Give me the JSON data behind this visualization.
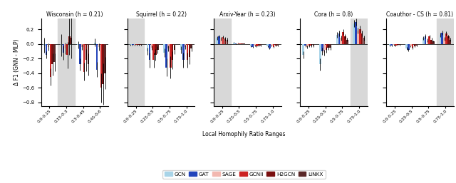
{
  "datasets": {
    "Wisconsin": {
      "title": "Wisconsin (h = 0.21)",
      "x_labels": [
        "0.0-0.15",
        "0.15-0.3",
        "0.3-0.45",
        "0.45-0.6"
      ],
      "highlight_idx": 1,
      "models": {
        "GCN": [
          -0.02,
          -0.02,
          -0.01,
          0.02
        ],
        "GAT": [
          -0.15,
          -0.12,
          -0.28,
          -0.35
        ],
        "SAGE": [
          -0.04,
          -0.06,
          -0.04,
          -0.04
        ],
        "GCNII": [
          -0.45,
          -0.15,
          -0.38,
          -0.6
        ],
        "H2GCN": [
          -0.28,
          0.1,
          -0.22,
          -0.55
        ],
        "LINKX": [
          -0.25,
          0.08,
          -0.28,
          -0.4
        ]
      },
      "errors": {
        "GCN": [
          0.1,
          0.15,
          0.05,
          0.05
        ],
        "GAT": [
          0.05,
          0.1,
          0.08,
          0.1
        ],
        "SAGE": [
          0.05,
          0.08,
          0.04,
          0.05
        ],
        "GCNII": [
          0.12,
          0.18,
          0.12,
          0.2
        ],
        "H2GCN": [
          0.15,
          0.25,
          0.15,
          0.28
        ],
        "LINKX": [
          0.12,
          0.28,
          0.15,
          0.22
        ]
      }
    },
    "Squirrel": {
      "title": "Squirrel (h = 0.22)",
      "x_labels": [
        "0.0-0.25",
        "0.25-0.5",
        "0.5-0.75",
        "0.75-1.0"
      ],
      "highlight_idx": 0,
      "models": {
        "GCN": [
          -0.01,
          -0.1,
          -0.12,
          -0.08
        ],
        "GAT": [
          -0.01,
          -0.22,
          -0.32,
          -0.22
        ],
        "SAGE": [
          -0.01,
          -0.05,
          -0.06,
          -0.04
        ],
        "GCNII": [
          -0.01,
          -0.22,
          -0.32,
          -0.22
        ],
        "H2GCN": [
          -0.01,
          -0.15,
          -0.22,
          -0.18
        ],
        "LINKX": [
          -0.01,
          -0.08,
          -0.08,
          -0.06
        ]
      },
      "errors": {
        "GCN": [
          0.01,
          0.05,
          0.06,
          0.05
        ],
        "GAT": [
          0.01,
          0.1,
          0.12,
          0.1
        ],
        "SAGE": [
          0.01,
          0.03,
          0.04,
          0.03
        ],
        "GCNII": [
          0.01,
          0.1,
          0.15,
          0.1
        ],
        "H2GCN": [
          0.01,
          0.08,
          0.12,
          0.1
        ],
        "LINKX": [
          0.01,
          0.05,
          0.06,
          0.04
        ]
      }
    },
    "Arxiv-Year": {
      "title": "Arxiv-Year (h = 0.23)",
      "x_labels": [
        "0.0-0.25",
        "0.25-0.5",
        "0.5-0.75",
        "0.75-1.0"
      ],
      "highlight_idx": 0,
      "models": {
        "GCN": [
          0.08,
          0.02,
          -0.03,
          -0.03
        ],
        "GAT": [
          0.1,
          0.005,
          -0.04,
          -0.06
        ],
        "SAGE": [
          0.07,
          0.01,
          -0.02,
          -0.02
        ],
        "GCNII": [
          0.09,
          0.005,
          -0.03,
          -0.04
        ],
        "H2GCN": [
          0.07,
          0.005,
          -0.02,
          -0.02
        ],
        "LINKX": [
          0.06,
          0.005,
          -0.02,
          -0.02
        ]
      },
      "errors": {
        "GCN": [
          0.02,
          0.005,
          0.01,
          0.01
        ],
        "GAT": [
          0.02,
          0.005,
          0.01,
          0.01
        ],
        "SAGE": [
          0.02,
          0.003,
          0.01,
          0.01
        ],
        "GCNII": [
          0.02,
          0.003,
          0.01,
          0.01
        ],
        "H2GCN": [
          0.02,
          0.003,
          0.01,
          0.01
        ],
        "LINKX": [
          0.02,
          0.003,
          0.01,
          0.01
        ]
      }
    },
    "Cora": {
      "title": "Cora (h = 0.8)",
      "x_labels": [
        "0.0-0.25",
        "0.25-0.5",
        "0.5-0.75",
        "0.75-1.0"
      ],
      "highlight_idx": 3,
      "models": {
        "GCN": [
          -0.15,
          -0.28,
          0.12,
          0.28
        ],
        "GAT": [
          -0.02,
          -0.1,
          0.14,
          0.3
        ],
        "SAGE": [
          -0.04,
          -0.12,
          0.08,
          0.18
        ],
        "GCNII": [
          -0.02,
          -0.08,
          0.16,
          0.2
        ],
        "H2GCN": [
          -0.02,
          -0.05,
          0.1,
          0.14
        ],
        "LINKX": [
          -0.02,
          -0.05,
          0.06,
          0.08
        ]
      },
      "errors": {
        "GCN": [
          0.05,
          0.08,
          0.04,
          0.05
        ],
        "GAT": [
          0.02,
          0.05,
          0.04,
          0.05
        ],
        "SAGE": [
          0.02,
          0.04,
          0.03,
          0.04
        ],
        "GCNII": [
          0.02,
          0.04,
          0.04,
          0.05
        ],
        "H2GCN": [
          0.02,
          0.03,
          0.03,
          0.04
        ],
        "LINKX": [
          0.02,
          0.03,
          0.02,
          0.03
        ]
      }
    },
    "Coauthor-CS": {
      "title": "Coauthor - CS (h = 0.81)",
      "x_labels": [
        "0.0-0.25",
        "0.25-0.5",
        "0.5-0.75",
        "0.75-1.0"
      ],
      "highlight_idx": 3,
      "models": {
        "GCN": [
          -0.02,
          -0.06,
          0.08,
          0.12
        ],
        "GAT": [
          -0.02,
          -0.08,
          0.1,
          0.15
        ],
        "SAGE": [
          -0.01,
          -0.03,
          0.05,
          0.07
        ],
        "GCNII": [
          -0.02,
          -0.05,
          0.1,
          0.14
        ],
        "H2GCN": [
          -0.01,
          -0.03,
          0.06,
          0.1
        ],
        "LINKX": [
          -0.01,
          -0.02,
          0.04,
          0.06
        ]
      },
      "errors": {
        "GCN": [
          0.01,
          0.02,
          0.02,
          0.03
        ],
        "GAT": [
          0.01,
          0.02,
          0.03,
          0.03
        ],
        "SAGE": [
          0.01,
          0.01,
          0.02,
          0.02
        ],
        "GCNII": [
          0.01,
          0.02,
          0.02,
          0.03
        ],
        "H2GCN": [
          0.01,
          0.01,
          0.02,
          0.02
        ],
        "LINKX": [
          0.01,
          0.01,
          0.01,
          0.02
        ]
      }
    }
  },
  "model_colors": {
    "GCN": "#a8d4e8",
    "GAT": "#2244bb",
    "SAGE": "#f2b8b0",
    "GCNII": "#cc2222",
    "H2GCN": "#7a1010",
    "LINKX": "#5a2828"
  },
  "ylabel": "Δ F1 (GNN - MLP)",
  "xlabel": "Local Homophily Ratio Ranges",
  "ylim": [
    -0.85,
    0.35
  ],
  "bar_width": 0.12,
  "highlight_color": "#d8d8d8",
  "legend_order": [
    "GCN",
    "GAT",
    "SAGE",
    "GCNII",
    "H2GCN",
    "LINKX"
  ]
}
